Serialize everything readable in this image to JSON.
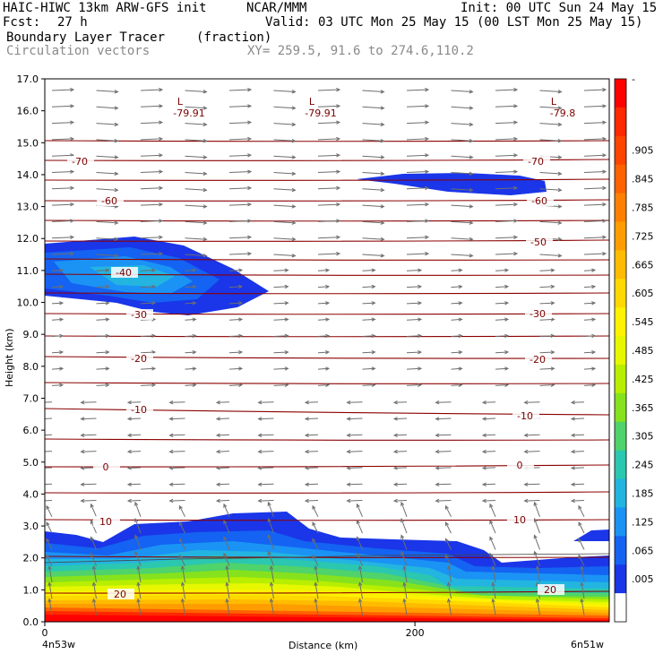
{
  "header": {
    "title_left": "HAIC-HIWC 13km ARW-GFS init",
    "org": "NCAR/MMM",
    "init": "Init: 00 UTC Sun 24 May 15",
    "fcst_label": "Fcst:",
    "fcst_value": "27 h",
    "valid": "Valid: 03 UTC Mon 25 May 15 (00 LST Mon 25 May 15)",
    "field1_name": "Boundary Layer Tracer",
    "field1_units": "(fraction)",
    "field2_name": "Circulation vectors",
    "xy_info": "XY= 259.5, 91.6 to 274.6,110.2"
  },
  "chart_data": {
    "type": "heatmap",
    "xlabel": "Distance (km)",
    "ylabel": "Height (km)",
    "xlim": [
      0,
      305
    ],
    "ylim": [
      0,
      17
    ],
    "x_ticks": [
      0,
      200
    ],
    "x_end_labels": [
      "4n53w",
      "6n51w"
    ],
    "y_ticks": [
      "0.0",
      "1.0",
      "2.0",
      "3.0",
      "4.0",
      "5.0",
      "6.0",
      "7.0",
      "8.0",
      "9.0",
      "10.0",
      "11.0",
      "12.0",
      "13.0",
      "14.0",
      "15.0",
      "16.0",
      "17.0"
    ],
    "colorbar": {
      "labels": [
        "-",
        ".905",
        ".845",
        ".785",
        ".725",
        ".665",
        ".605",
        ".545",
        ".485",
        ".425",
        ".365",
        ".305",
        ".245",
        ".185",
        ".125",
        ".065",
        ".005"
      ],
      "colors": [
        "#ff0000",
        "#ff2800",
        "#ff4400",
        "#ff6200",
        "#ff8000",
        "#ff9d00",
        "#ffbb00",
        "#ffd800",
        "#fff200",
        "#e6f700",
        "#b8ee00",
        "#86e21c",
        "#4fd36a",
        "#2bc7b0",
        "#23b5e0",
        "#1a93f5",
        "#1463f2",
        "#1a36e8",
        "#ffffff"
      ]
    },
    "temperature_contours": {
      "labels": [
        "-70",
        "-60",
        "-50",
        "-40",
        "-30",
        "-20",
        "-10",
        "0",
        "10",
        "20"
      ],
      "minima": [
        "-79.91",
        "-79.91",
        "-79.8"
      ],
      "minima_symbol": "L"
    },
    "vectors": "circulation (u,w) shown as gray arrows on a regular grid"
  }
}
